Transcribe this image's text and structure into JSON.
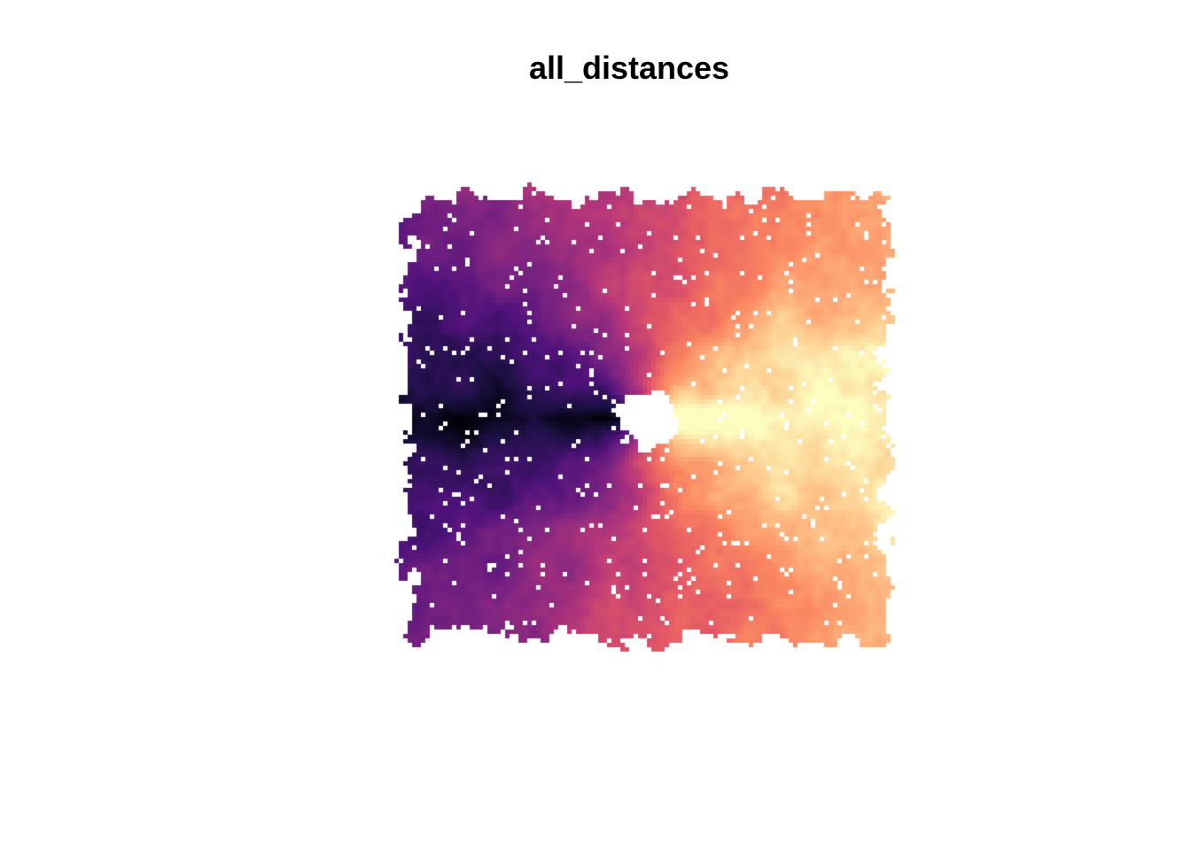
{
  "chart_data": {
    "type": "heatmap",
    "title": "all_distances",
    "xlabel": "",
    "ylabel": "",
    "grid": false,
    "legend": "none",
    "axes_visible": false,
    "color_scale": {
      "name": "magma",
      "stops": [
        "#000004",
        "#1c1044",
        "#4f127b",
        "#812581",
        "#b5367a",
        "#e55964",
        "#fb8761",
        "#fec287",
        "#fcfdbf"
      ]
    }
  }
}
